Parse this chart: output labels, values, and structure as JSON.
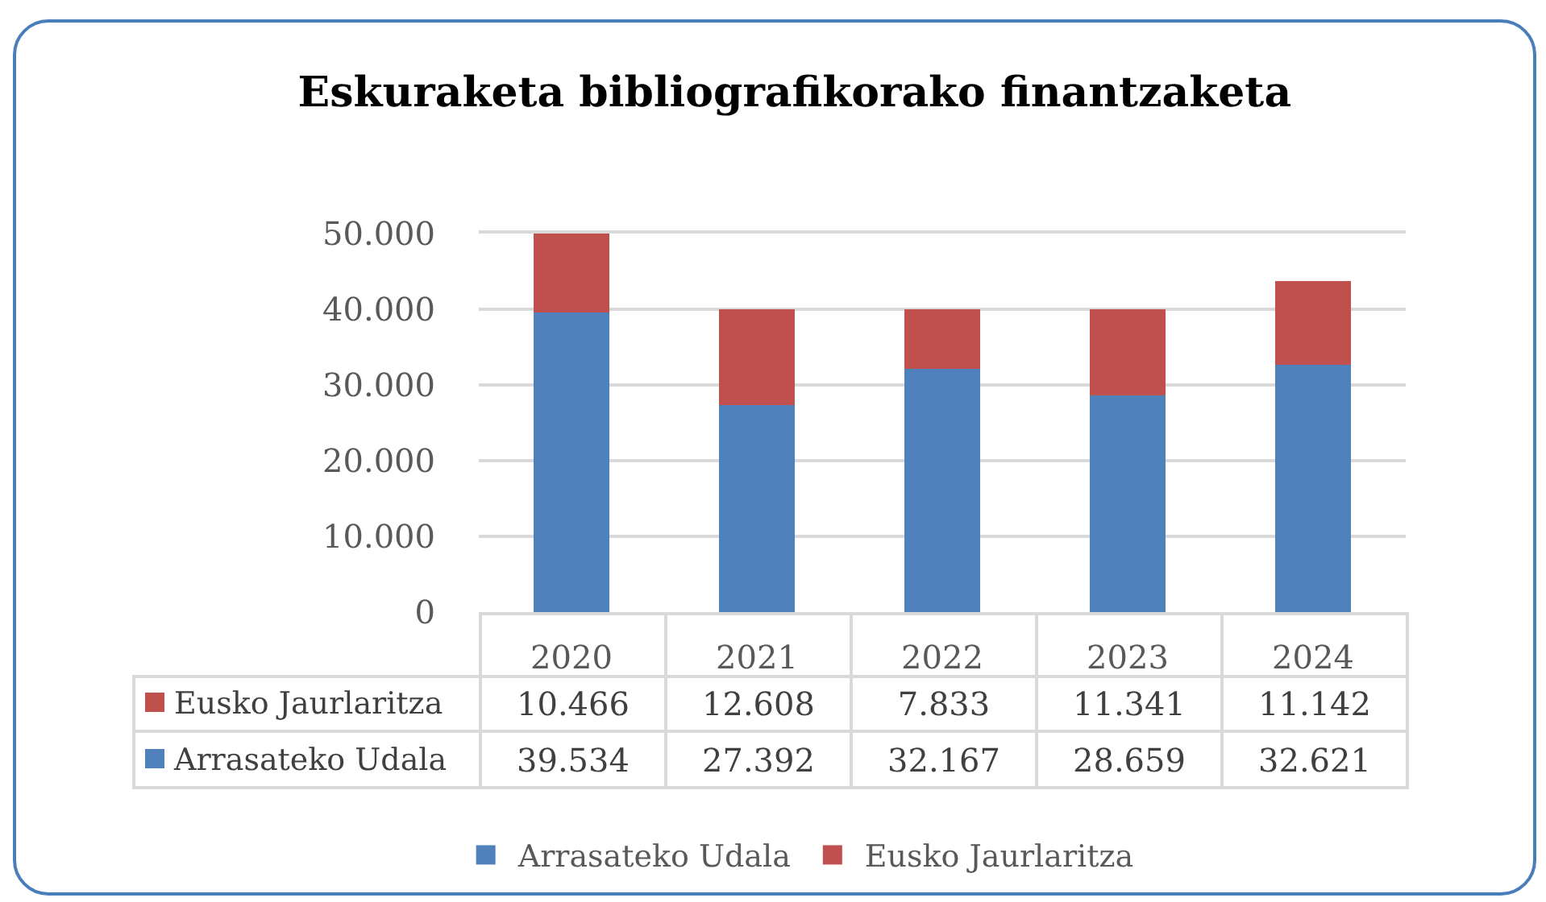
{
  "chart_data": {
    "type": "bar",
    "title": "Eskuraketa bibliografikorako finantzaketa",
    "categories": [
      "2020",
      "2021",
      "2022",
      "2023",
      "2024"
    ],
    "stacked": true,
    "series": [
      {
        "name": "Arrasateko Udala",
        "color": "#4f81bd",
        "values": [
          39534,
          27392,
          32167,
          28659,
          32621
        ],
        "value_labels": [
          "39.534",
          "27.392",
          "32.167",
          "28.659",
          "32.621"
        ]
      },
      {
        "name": "Eusko Jaurlaritza",
        "color": "#c0504d",
        "values": [
          10466,
          12608,
          7833,
          11341,
          11142
        ],
        "value_labels": [
          "10.466",
          "12.608",
          "7.833",
          "11.341",
          "11.142"
        ]
      }
    ],
    "ylim": [
      0,
      50000
    ],
    "yticks": [
      0,
      {
        "value": 10000,
        "label": "10.000"
      },
      {
        "value": 20000,
        "label": "20.000"
      },
      {
        "value": 30000,
        "label": "30.000"
      },
      {
        "value": 40000,
        "label": "40.000"
      },
      {
        "value": 50000,
        "label": "50.000"
      }
    ],
    "grid": "y",
    "legend": "bottom"
  }
}
